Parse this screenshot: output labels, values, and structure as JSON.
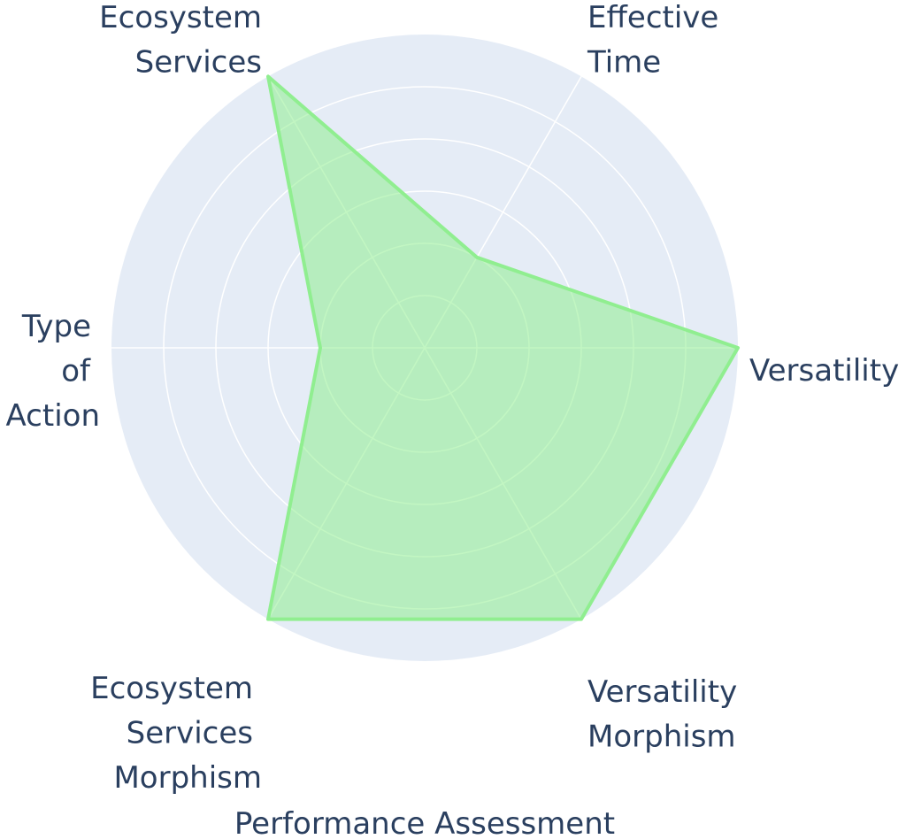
{
  "chart_data": {
    "type": "radar",
    "title": "Performance Assessment",
    "axes": [
      {
        "label_lines": [
          "Versatility"
        ]
      },
      {
        "label_lines": [
          "Effective",
          "Time"
        ]
      },
      {
        "label_lines": [
          "Ecosystem",
          "Services"
        ]
      },
      {
        "label_lines": [
          "Type",
          "of",
          "Action"
        ]
      },
      {
        "label_lines": [
          "Ecosystem",
          "Services",
          "Morphism"
        ]
      },
      {
        "label_lines": [
          "Versatility",
          "Morphism"
        ]
      }
    ],
    "series": [
      {
        "values": [
          3,
          1,
          3,
          1,
          3,
          3
        ]
      }
    ],
    "radial_range": [
      0,
      3
    ],
    "grid": true,
    "colors": {
      "polar_bg": "#e5ecf6",
      "grid": "#ffffff",
      "line": "#90ee90",
      "fill": "#b8ebbd",
      "text": "#2a3f5f"
    }
  }
}
